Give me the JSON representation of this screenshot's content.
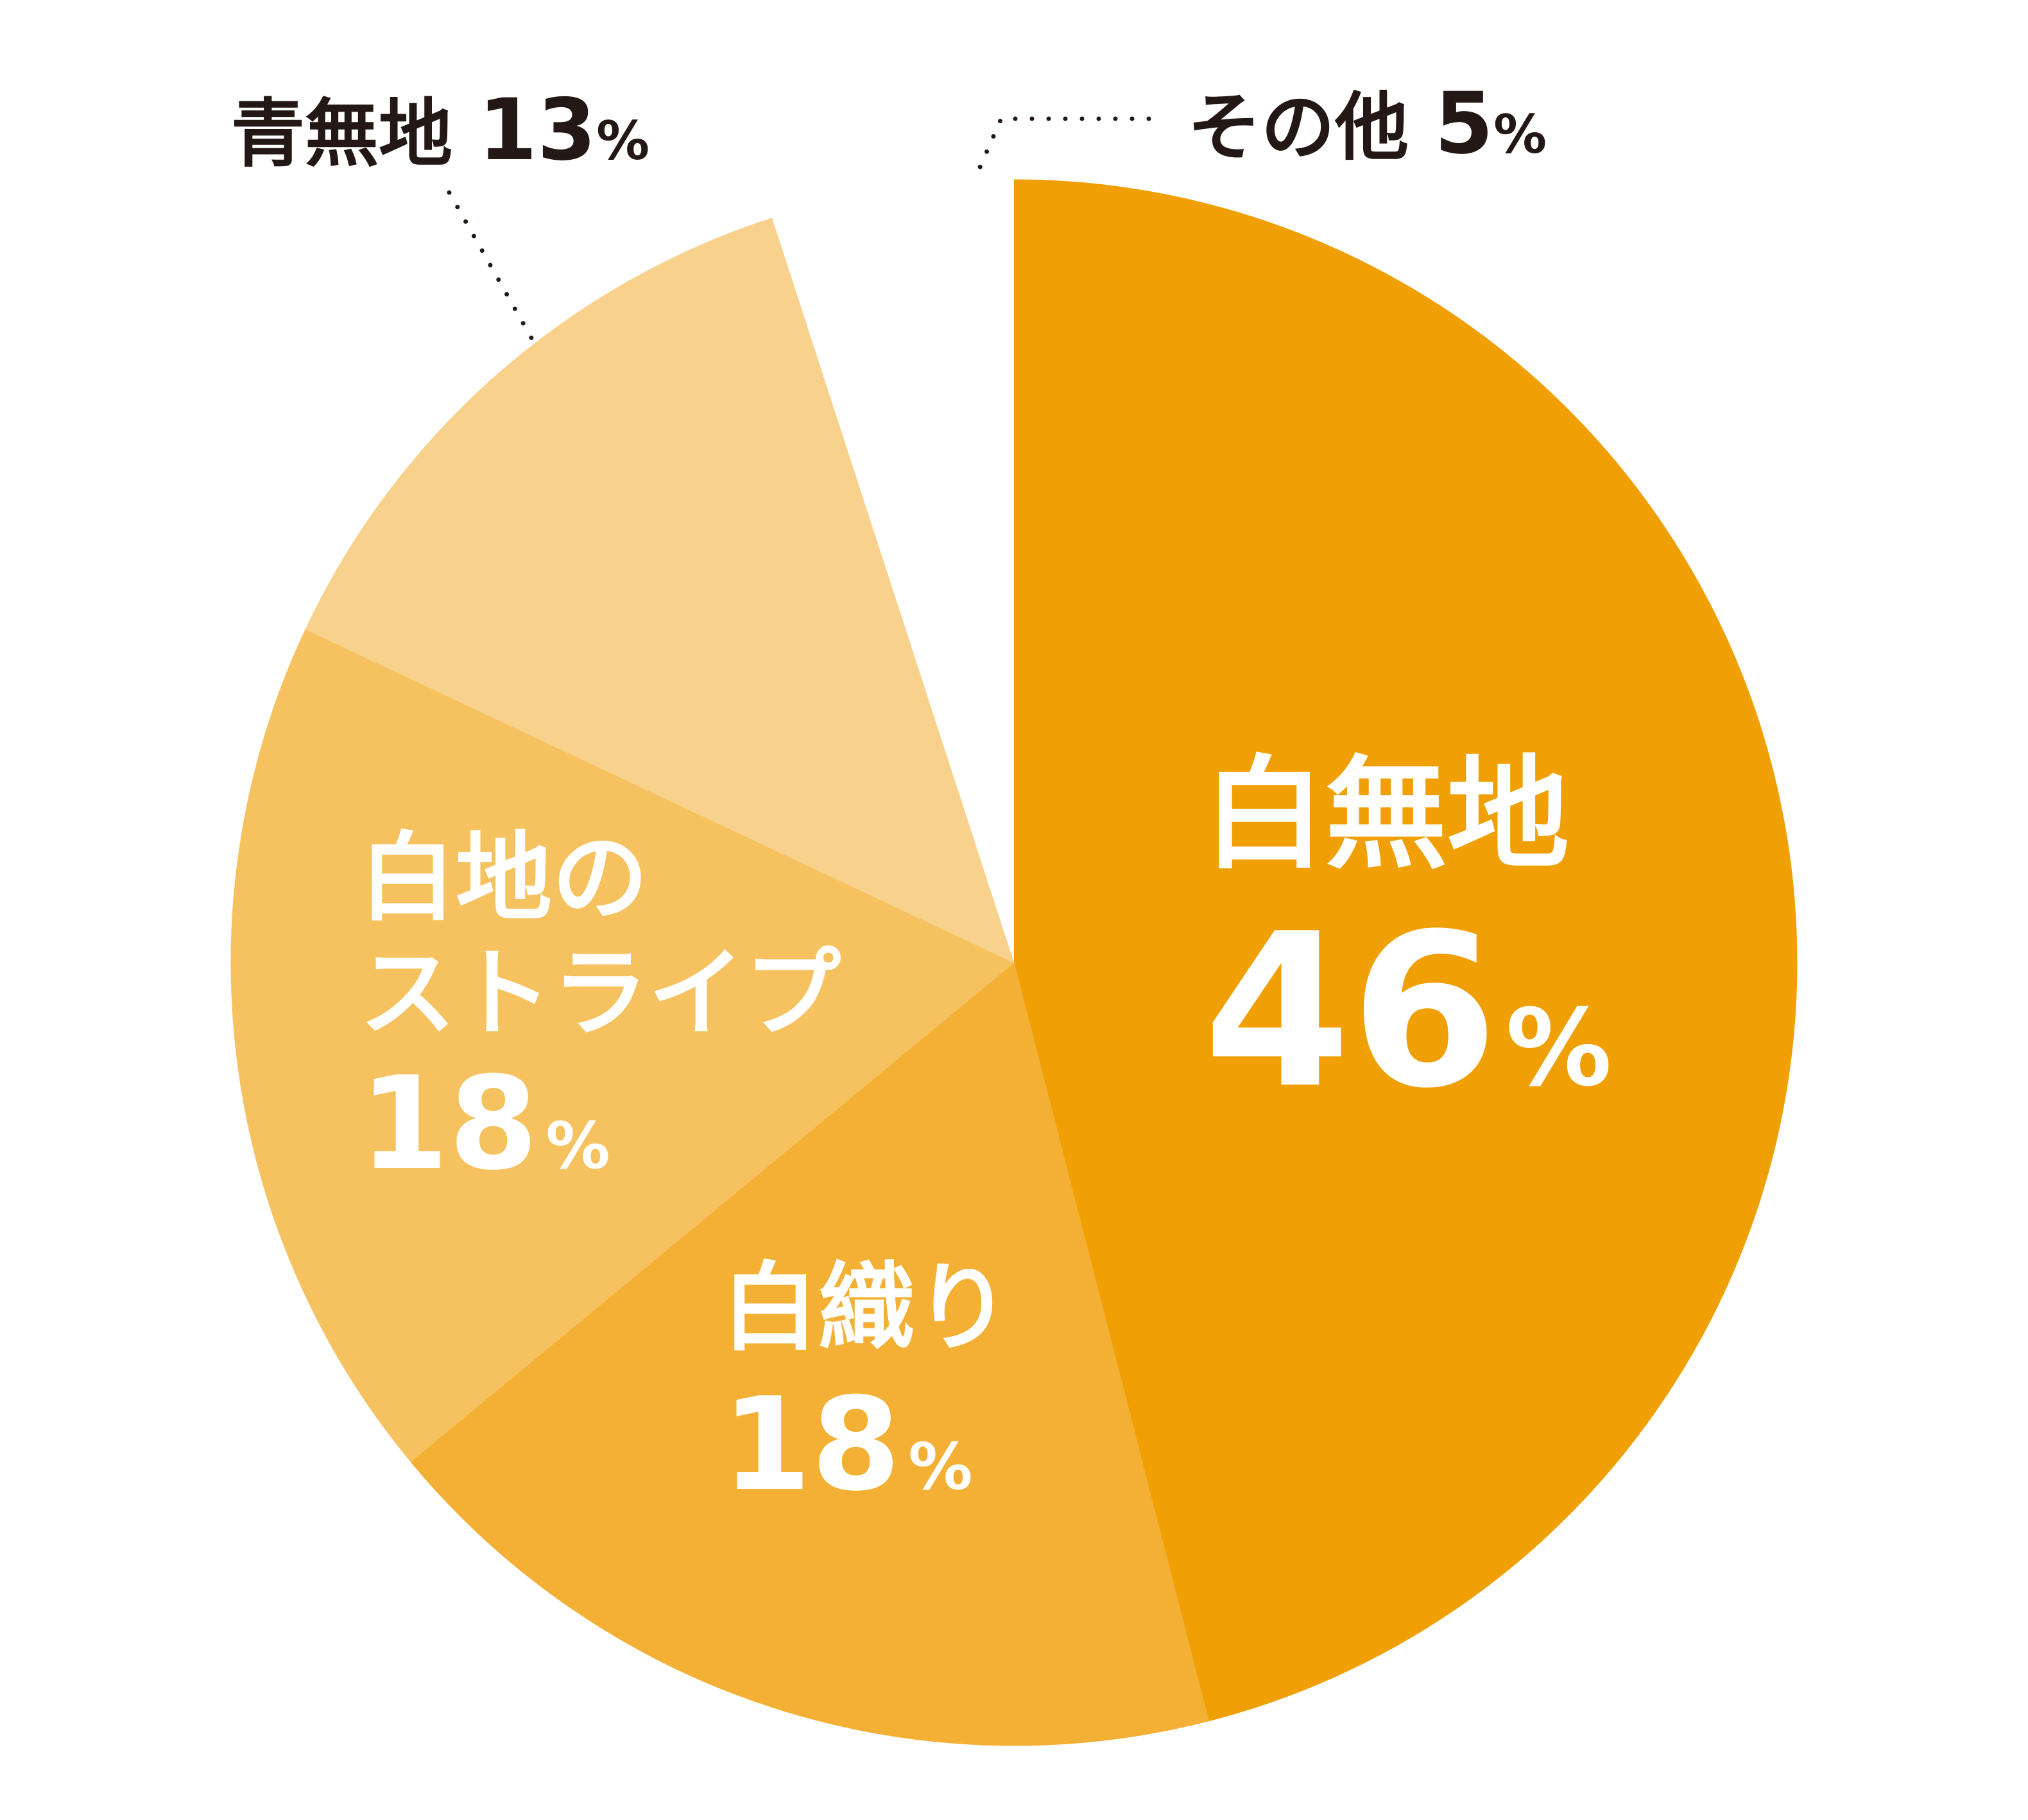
{
  "chart_data": {
    "type": "pie",
    "start_angle_deg": 0,
    "direction": "clockwise",
    "legend": "none",
    "slices": [
      {
        "label": "白無地",
        "value": 46,
        "display": "46",
        "unit": "%",
        "color": "#F0A005"
      },
      {
        "label": "白織り",
        "value": 18,
        "display": "18",
        "unit": "%",
        "color": "#F3B035"
      },
      {
        "label": "白地のストライプ",
        "label_lines": [
          "白地の",
          "ストライプ"
        ],
        "value": 18,
        "display": "18",
        "unit": "%",
        "color": "#F6C260"
      },
      {
        "label": "青無地",
        "value": 13,
        "display": "13",
        "unit": "%",
        "color": "#F8D18C"
      },
      {
        "label": "その他",
        "value": 5,
        "display": "5",
        "unit": "%",
        "color": "#FFFFFF"
      }
    ]
  }
}
